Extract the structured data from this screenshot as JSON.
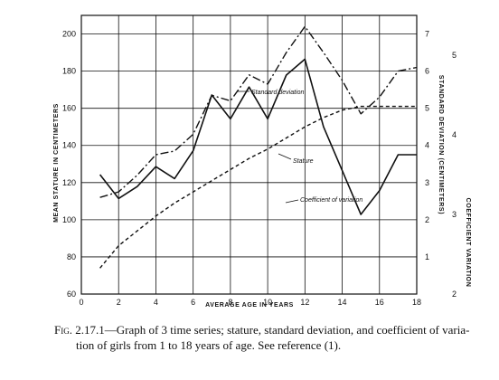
{
  "chart_data": {
    "type": "line",
    "xlabel": "AVERAGE AGE IN YEARS",
    "ylabel_left": "MEAN STATURE IN CENTIMETERS",
    "ylabel_right_sd": "STANDARD DEVIATION (CENTIMETERS)",
    "ylabel_right_cv": "COEFFICIENT VARIATION",
    "xlim": [
      0,
      18
    ],
    "ylim_stature": [
      60,
      210
    ],
    "ylim_sd": [
      0,
      7.5
    ],
    "ylim_cv": [
      2,
      5.5
    ],
    "x_ticks": [
      0,
      2,
      4,
      6,
      8,
      10,
      12,
      14,
      16,
      18
    ],
    "y_ticks_stature": [
      60,
      80,
      100,
      120,
      140,
      160,
      180,
      200
    ],
    "y_ticks_sd": [
      1,
      2,
      3,
      4,
      5,
      6,
      7
    ],
    "y_ticks_cv": [
      2,
      3,
      4,
      5
    ],
    "grid": true,
    "series": [
      {
        "name": "Standard deviation",
        "axis": "sd",
        "style": "dashdot",
        "x": [
          1,
          2,
          3,
          4,
          5,
          6,
          7,
          8,
          9,
          10,
          11,
          12,
          13,
          14,
          15,
          16,
          17,
          18
        ],
        "values": [
          2.6,
          2.75,
          3.2,
          3.75,
          3.85,
          4.3,
          5.35,
          5.2,
          5.9,
          5.65,
          6.5,
          7.2,
          6.5,
          5.75,
          4.85,
          5.3,
          6.0,
          6.1
        ]
      },
      {
        "name": "Stature",
        "axis": "stature",
        "style": "dashed",
        "x": [
          1,
          2,
          3,
          4,
          5,
          6,
          7,
          8,
          9,
          10,
          11,
          12,
          13,
          14,
          15,
          16,
          17,
          18
        ],
        "values": [
          74,
          86,
          94,
          102,
          109,
          115,
          121,
          127,
          133,
          138,
          144,
          150,
          155,
          159,
          161,
          161,
          161,
          161
        ]
      },
      {
        "name": "Coefficient of variation",
        "axis": "cv",
        "style": "solid",
        "x": [
          1,
          2,
          3,
          4,
          5,
          6,
          7,
          8,
          9,
          10,
          11,
          12,
          13,
          14,
          15,
          16,
          17,
          18
        ],
        "values": [
          3.5,
          3.2,
          3.35,
          3.6,
          3.45,
          3.8,
          4.5,
          4.2,
          4.6,
          4.2,
          4.75,
          4.95,
          4.1,
          3.55,
          3.0,
          3.3,
          3.75,
          3.75
        ]
      }
    ],
    "annotations": [
      "Standard deviation",
      "Stature",
      "Coefficient of variation"
    ]
  },
  "caption": {
    "fig": "Fig. 2.17.1",
    "line1": "—Graph of 3 time series; stature, standard deviation, and coefficient of varia-",
    "line2": "tion of girls from 1 to 18 years of age.  See reference (1)."
  }
}
